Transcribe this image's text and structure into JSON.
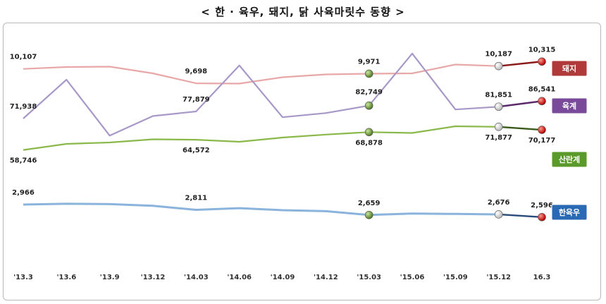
{
  "title": "< 한 · 육우, 돼지, 닭 사육마릿수 동향 >",
  "chart_data": {
    "type": "line",
    "title": "< 한 · 육우, 돼지, 닭 사육마릿수 동향 >",
    "categories": [
      "'13.3",
      "'13.6",
      "'13.9",
      "'13.12",
      "'14.03",
      "'14.06",
      "'14.09",
      "'14.12",
      "'15.03",
      "'15.06",
      "'15.09",
      "'15.12",
      "16.3"
    ],
    "grid": false,
    "legend": "right-end tags",
    "series": [
      {
        "name": "돼지",
        "color": "#e8a8a8",
        "tag_color": "#b03a3a",
        "values": [
          10107,
          10160,
          10170,
          9980,
          9698,
          9690,
          9870,
          9950,
          9971,
          9980,
          10230,
          10187,
          10315
        ],
        "labels": [
          "10,107",
          "",
          "",
          "",
          "9,698",
          "",
          "",
          "",
          "9,971",
          "",
          "",
          "10,187",
          "10,315"
        ]
      },
      {
        "name": "육계",
        "color": "#a898c8",
        "tag_color": "#7a4a9a",
        "values": [
          71938,
          104500,
          57500,
          74000,
          77879,
          116500,
          73000,
          76500,
          82749,
          126500,
          79500,
          81851,
          86541
        ],
        "labels": [
          "71,938",
          "",
          "",
          "",
          "77,879",
          "",
          "",
          "",
          "82,749",
          "",
          "",
          "81,851",
          "86,541"
        ]
      },
      {
        "name": "산란계",
        "color": "#8ab84a",
        "tag_color": "#5a9a2a",
        "values": [
          58746,
          62200,
          63000,
          64800,
          64572,
          63400,
          65800,
          67500,
          68878,
          68400,
          72200,
          71877,
          70177
        ],
        "labels": [
          "58,746",
          "",
          "",
          "",
          "64,572",
          "",
          "",
          "",
          "68,878",
          "",
          "",
          "71,877",
          "70,177"
        ]
      },
      {
        "name": "한육우",
        "color": "#8ab4dc",
        "tag_color": "#2a6ab4",
        "values": [
          2966,
          2990,
          2980,
          2930,
          2811,
          2860,
          2800,
          2770,
          2659,
          2700,
          2690,
          2676,
          2596
        ],
        "labels": [
          "2,966",
          "",
          "",
          "",
          "2,811",
          "",
          "",
          "",
          "2,659",
          "",
          "",
          "2,676",
          "2,596"
        ]
      }
    ]
  }
}
